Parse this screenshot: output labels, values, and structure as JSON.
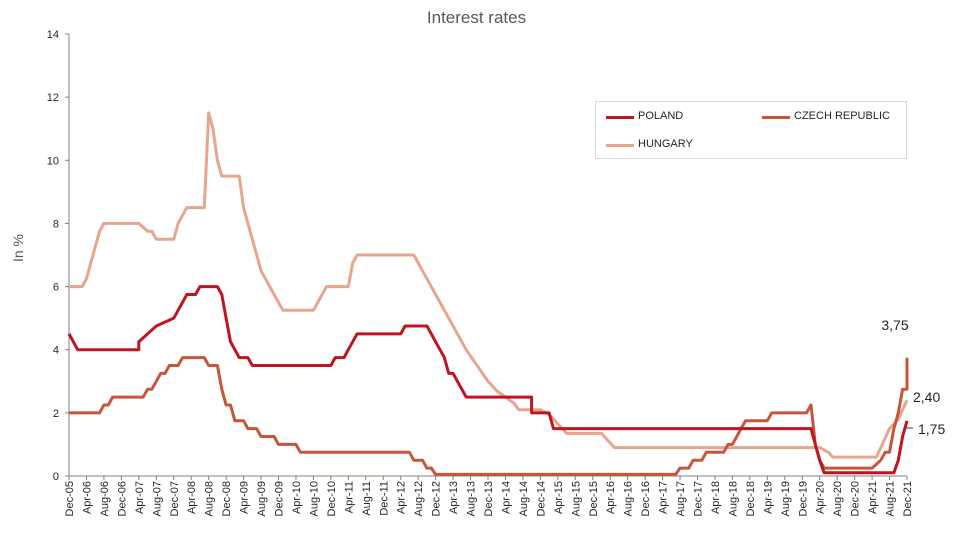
{
  "chart_data": {
    "type": "line",
    "title": "Interest rates",
    "ylabel": "In %",
    "xlabel": "",
    "ylim": [
      0,
      14
    ],
    "yticks": [
      0,
      2,
      4,
      6,
      8,
      10,
      12,
      14
    ],
    "x_tick_labels": [
      "Dec-05",
      "Apr-06",
      "Aug-06",
      "Dec-06",
      "Apr-07",
      "Aug-07",
      "Dec-07",
      "Apr-08",
      "Aug-08",
      "Dec-08",
      "Apr-09",
      "Aug-09",
      "Dec-09",
      "Apr-10",
      "Aug-10",
      "Dec-10",
      "Apr-11",
      "Aug-11",
      "Dec-11",
      "Apr-12",
      "Aug-12",
      "Dec-12",
      "Apr-13",
      "Aug-13",
      "Dec-13",
      "Apr-14",
      "Aug-14",
      "Dec-14",
      "Apr-15",
      "Aug-15",
      "Dec-15",
      "Apr-16",
      "Aug-16",
      "Dec-16",
      "Apr-17",
      "Aug-17",
      "Dec-17",
      "Apr-18",
      "Aug-18",
      "Dec-18",
      "Apr-19",
      "Aug-19",
      "Dec-19",
      "Apr-20",
      "Aug-20",
      "Dec-20",
      "Apr-21",
      "Aug-21",
      "Dec-21"
    ],
    "grid": false,
    "legend_position": "top-right",
    "series": [
      {
        "name": "POLAND",
        "color": "#c0141e",
        "points": [
          [
            "Dec-05",
            4.5
          ],
          [
            "Feb-06",
            4.0
          ],
          [
            "Aug-06",
            4.0
          ],
          [
            "Dec-06",
            4.0
          ],
          [
            "Apr-07",
            4.0
          ],
          [
            "Apr-07",
            4.25
          ],
          [
            "Jun-07",
            4.5
          ],
          [
            "Aug-07",
            4.75
          ],
          [
            "Dec-07",
            5.0
          ],
          [
            "Jan-08",
            5.25
          ],
          [
            "Feb-08",
            5.5
          ],
          [
            "Mar-08",
            5.75
          ],
          [
            "May-08",
            5.75
          ],
          [
            "Jun-08",
            6.0
          ],
          [
            "Oct-08",
            6.0
          ],
          [
            "Nov-08",
            5.75
          ],
          [
            "Dec-08",
            5.0
          ],
          [
            "Jan-09",
            4.25
          ],
          [
            "Feb-09",
            4.0
          ],
          [
            "Mar-09",
            3.75
          ],
          [
            "May-09",
            3.75
          ],
          [
            "Jun-09",
            3.5
          ],
          [
            "Dec-09",
            3.5
          ],
          [
            "Apr-10",
            3.5
          ],
          [
            "Dec-10",
            3.5
          ],
          [
            "Jan-11",
            3.75
          ],
          [
            "Mar-11",
            3.75
          ],
          [
            "Apr-11",
            4.0
          ],
          [
            "May-11",
            4.25
          ],
          [
            "Jun-11",
            4.5
          ],
          [
            "Dec-11",
            4.5
          ],
          [
            "Apr-12",
            4.5
          ],
          [
            "May-12",
            4.75
          ],
          [
            "Aug-12",
            4.75
          ],
          [
            "Oct-12",
            4.75
          ],
          [
            "Nov-12",
            4.5
          ],
          [
            "Dec-12",
            4.25
          ],
          [
            "Jan-13",
            4.0
          ],
          [
            "Feb-13",
            3.75
          ],
          [
            "Mar-13",
            3.25
          ],
          [
            "Apr-13",
            3.25
          ],
          [
            "May-13",
            3.0
          ],
          [
            "Jun-13",
            2.75
          ],
          [
            "Jul-13",
            2.5
          ],
          [
            "Dec-13",
            2.5
          ],
          [
            "Aug-14",
            2.5
          ],
          [
            "Oct-14",
            2.5
          ],
          [
            "Oct-14",
            2.0
          ],
          [
            "Feb-15",
            2.0
          ],
          [
            "Mar-15",
            1.5
          ],
          [
            "Dec-15",
            1.5
          ],
          [
            "Dec-16",
            1.5
          ],
          [
            "Dec-17",
            1.5
          ],
          [
            "Dec-18",
            1.5
          ],
          [
            "Dec-19",
            1.5
          ],
          [
            "Feb-20",
            1.5
          ],
          [
            "Mar-20",
            1.0
          ],
          [
            "Apr-20",
            0.5
          ],
          [
            "May-20",
            0.1
          ],
          [
            "Dec-20",
            0.1
          ],
          [
            "Aug-21",
            0.1
          ],
          [
            "Sep-21",
            0.1
          ],
          [
            "Oct-21",
            0.5
          ],
          [
            "Nov-21",
            1.25
          ],
          [
            "Dec-21",
            1.75
          ]
        ],
        "end_label": "1,75"
      },
      {
        "name": "CZECH REPUBLIC",
        "color": "#c8553a",
        "points": [
          [
            "Dec-05",
            2.0
          ],
          [
            "Jul-06",
            2.0
          ],
          [
            "Aug-06",
            2.25
          ],
          [
            "Sep-06",
            2.25
          ],
          [
            "Oct-06",
            2.5
          ],
          [
            "Dec-06",
            2.5
          ],
          [
            "May-07",
            2.5
          ],
          [
            "Jun-07",
            2.75
          ],
          [
            "Jul-07",
            2.75
          ],
          [
            "Aug-07",
            3.0
          ],
          [
            "Sep-07",
            3.25
          ],
          [
            "Oct-07",
            3.25
          ],
          [
            "Nov-07",
            3.5
          ],
          [
            "Jan-08",
            3.5
          ],
          [
            "Feb-08",
            3.75
          ],
          [
            "Jul-08",
            3.75
          ],
          [
            "Aug-08",
            3.5
          ],
          [
            "Oct-08",
            3.5
          ],
          [
            "Nov-08",
            2.75
          ],
          [
            "Dec-08",
            2.25
          ],
          [
            "Jan-09",
            2.25
          ],
          [
            "Feb-09",
            1.75
          ],
          [
            "Apr-09",
            1.75
          ],
          [
            "May-09",
            1.5
          ],
          [
            "Jul-09",
            1.5
          ],
          [
            "Aug-09",
            1.25
          ],
          [
            "Nov-09",
            1.25
          ],
          [
            "Dec-09",
            1.0
          ],
          [
            "Apr-10",
            1.0
          ],
          [
            "May-10",
            0.75
          ],
          [
            "Aug-10",
            0.75
          ],
          [
            "Dec-10",
            0.75
          ],
          [
            "Dec-11",
            0.75
          ],
          [
            "Jun-12",
            0.75
          ],
          [
            "Jul-12",
            0.5
          ],
          [
            "Sep-12",
            0.5
          ],
          [
            "Oct-12",
            0.25
          ],
          [
            "Nov-12",
            0.25
          ],
          [
            "Dec-12",
            0.05
          ],
          [
            "Dec-13",
            0.05
          ],
          [
            "Dec-14",
            0.05
          ],
          [
            "Dec-15",
            0.05
          ],
          [
            "Dec-16",
            0.05
          ],
          [
            "Jul-17",
            0.05
          ],
          [
            "Aug-17",
            0.25
          ],
          [
            "Oct-17",
            0.25
          ],
          [
            "Nov-17",
            0.5
          ],
          [
            "Jan-18",
            0.5
          ],
          [
            "Feb-18",
            0.75
          ],
          [
            "Jun-18",
            0.75
          ],
          [
            "Jul-18",
            1.0
          ],
          [
            "Aug-18",
            1.0
          ],
          [
            "Sep-18",
            1.25
          ],
          [
            "Oct-18",
            1.5
          ],
          [
            "Nov-18",
            1.75
          ],
          [
            "Apr-19",
            1.75
          ],
          [
            "May-19",
            2.0
          ],
          [
            "Dec-19",
            2.0
          ],
          [
            "Jan-20",
            2.0
          ],
          [
            "Feb-20",
            2.25
          ],
          [
            "Mar-20",
            1.0
          ],
          [
            "Apr-20",
            0.5
          ],
          [
            "May-20",
            0.25
          ],
          [
            "Dec-20",
            0.25
          ],
          [
            "Apr-21",
            0.25
          ],
          [
            "Jun-21",
            0.5
          ],
          [
            "Jul-21",
            0.75
          ],
          [
            "Aug-21",
            0.75
          ],
          [
            "Sep-21",
            1.5
          ],
          [
            "Oct-21",
            2.0
          ],
          [
            "Nov-21",
            2.75
          ],
          [
            "Dec-21",
            2.75
          ],
          [
            "Dec-21",
            3.75
          ]
        ],
        "end_label": "3,75"
      },
      {
        "name": "HUNGARY",
        "color": "#e9a48e",
        "points": [
          [
            "Dec-05",
            6.0
          ],
          [
            "Jan-06",
            6.0
          ],
          [
            "Mar-06",
            6.0
          ],
          [
            "Apr-06",
            6.25
          ],
          [
            "May-06",
            6.75
          ],
          [
            "Jun-06",
            7.25
          ],
          [
            "Jul-06",
            7.75
          ],
          [
            "Aug-06",
            8.0
          ],
          [
            "Dec-06",
            8.0
          ],
          [
            "Apr-07",
            8.0
          ],
          [
            "Jun-07",
            7.75
          ],
          [
            "Jul-07",
            7.75
          ],
          [
            "Aug-07",
            7.5
          ],
          [
            "Sep-07",
            7.5
          ],
          [
            "Dec-07",
            7.5
          ],
          [
            "Jan-08",
            8.0
          ],
          [
            "Feb-08",
            8.25
          ],
          [
            "Mar-08",
            8.5
          ],
          [
            "Jun-08",
            8.5
          ],
          [
            "Jul-08",
            8.5
          ],
          [
            "Aug-08",
            11.5
          ],
          [
            "Sep-08",
            11.0
          ],
          [
            "Oct-08",
            10.0
          ],
          [
            "Nov-08",
            9.5
          ],
          [
            "Dec-08",
            9.5
          ],
          [
            "Feb-09",
            9.5
          ],
          [
            "Mar-09",
            9.5
          ],
          [
            "Apr-09",
            8.5
          ],
          [
            "May-09",
            8.0
          ],
          [
            "Jun-09",
            7.5
          ],
          [
            "Jul-09",
            7.0
          ],
          [
            "Aug-09",
            6.5
          ],
          [
            "Sep-09",
            6.25
          ],
          [
            "Oct-09",
            6.0
          ],
          [
            "Nov-09",
            5.75
          ],
          [
            "Dec-09",
            5.5
          ],
          [
            "Jan-10",
            5.25
          ],
          [
            "Apr-10",
            5.25
          ],
          [
            "Aug-10",
            5.25
          ],
          [
            "Sep-10",
            5.5
          ],
          [
            "Oct-10",
            5.75
          ],
          [
            "Nov-10",
            6.0
          ],
          [
            "Dec-10",
            6.0
          ],
          [
            "Apr-11",
            6.0
          ],
          [
            "Apr-11",
            6.0
          ],
          [
            "May-11",
            6.75
          ],
          [
            "Jun-11",
            7.0
          ],
          [
            "Dec-11",
            7.0
          ],
          [
            "Apr-12",
            7.0
          ],
          [
            "Jul-12",
            7.0
          ],
          [
            "Aug-12",
            6.75
          ],
          [
            "Sep-12",
            6.5
          ],
          [
            "Oct-12",
            6.25
          ],
          [
            "Nov-12",
            6.0
          ],
          [
            "Dec-12",
            5.75
          ],
          [
            "Jan-13",
            5.5
          ],
          [
            "Feb-13",
            5.25
          ],
          [
            "Mar-13",
            5.0
          ],
          [
            "Apr-13",
            4.75
          ],
          [
            "May-13",
            4.5
          ],
          [
            "Jun-13",
            4.25
          ],
          [
            "Jul-13",
            4.0
          ],
          [
            "Aug-13",
            3.8
          ],
          [
            "Sep-13",
            3.6
          ],
          [
            "Oct-13",
            3.4
          ],
          [
            "Nov-13",
            3.2
          ],
          [
            "Dec-13",
            3.0
          ],
          [
            "Jan-14",
            2.85
          ],
          [
            "Feb-14",
            2.7
          ],
          [
            "Mar-14",
            2.6
          ],
          [
            "Apr-14",
            2.5
          ],
          [
            "May-14",
            2.4
          ],
          [
            "Jun-14",
            2.3
          ],
          [
            "Jul-14",
            2.1
          ],
          [
            "Aug-14",
            2.1
          ],
          [
            "Dec-14",
            2.1
          ],
          [
            "Feb-15",
            1.95
          ],
          [
            "Mar-15",
            1.8
          ],
          [
            "Apr-15",
            1.65
          ],
          [
            "May-15",
            1.5
          ],
          [
            "Jun-15",
            1.35
          ],
          [
            "Jul-15",
            1.35
          ],
          [
            "Dec-15",
            1.35
          ],
          [
            "Feb-16",
            1.35
          ],
          [
            "Mar-16",
            1.2
          ],
          [
            "Apr-16",
            1.05
          ],
          [
            "May-16",
            0.9
          ],
          [
            "Dec-16",
            0.9
          ],
          [
            "Dec-17",
            0.9
          ],
          [
            "Dec-18",
            0.9
          ],
          [
            "Dec-19",
            0.9
          ],
          [
            "Apr-20",
            0.9
          ],
          [
            "Jun-20",
            0.75
          ],
          [
            "Jul-20",
            0.6
          ],
          [
            "Dec-20",
            0.6
          ],
          [
            "Apr-21",
            0.6
          ],
          [
            "May-21",
            0.6
          ],
          [
            "Jun-21",
            0.9
          ],
          [
            "Jul-21",
            1.2
          ],
          [
            "Aug-21",
            1.5
          ],
          [
            "Sep-21",
            1.65
          ],
          [
            "Oct-21",
            1.8
          ],
          [
            "Nov-21",
            2.1
          ],
          [
            "Dec-21",
            2.4
          ]
        ],
        "end_label": "2,40"
      }
    ]
  },
  "colors": {
    "poland": "#c0141e",
    "czech": "#c8553a",
    "hungary": "#e9a48e",
    "axis": "#595959"
  }
}
